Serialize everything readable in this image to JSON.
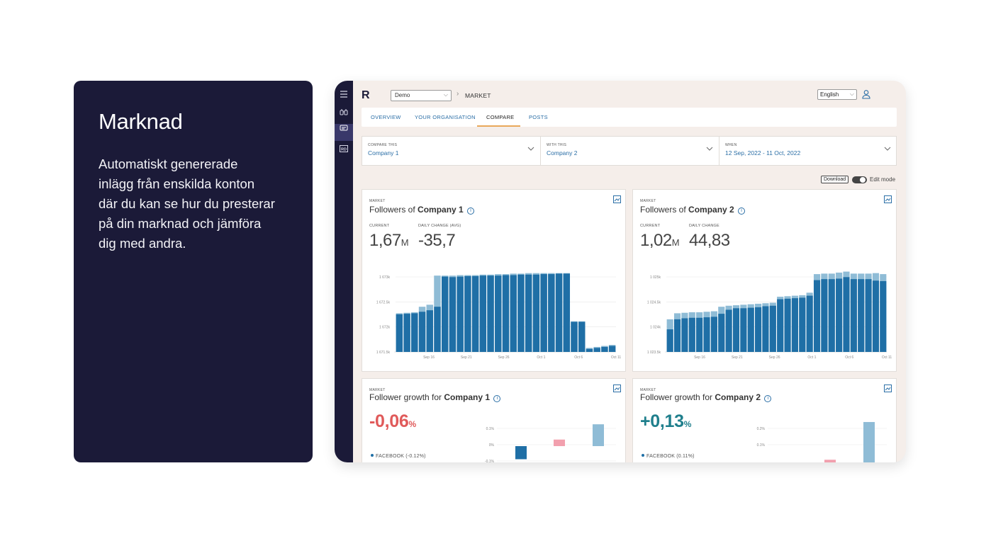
{
  "promo": {
    "title": "Marknad",
    "body": "Automatiskt genererade inlägg från enskilda konton där du kan se hur du presterar på din marknad och jämföra dig med andra."
  },
  "topbar": {
    "workspace": "Demo",
    "breadcrumb": "MARKET",
    "language": "English",
    "logo": "R"
  },
  "tabs": [
    "OVERVIEW",
    "YOUR ORGANISATION",
    "COMPARE",
    "POSTS"
  ],
  "filters": [
    {
      "label": "COMPARE THIS",
      "value": "Company 1"
    },
    {
      "label": "WITH THIS",
      "value": "Company 2"
    },
    {
      "label": "WHEN",
      "value": "12 Sep, 2022 - 11 Oct, 2022"
    }
  ],
  "toolbar": {
    "download": "Download",
    "edit_mode": "Edit mode"
  },
  "colors": {
    "bar_dark": "#1f6fa6",
    "bar_light": "#8fbcd6",
    "negative": "#e05a5a",
    "positive": "#1f7f8c",
    "pink": "#f2a0ae"
  },
  "cards": {
    "followers1": {
      "tag": "MARKET",
      "title_prefix": "Followers of",
      "company": "Company 1",
      "current_label": "CURRENT",
      "current_value": "1,67",
      "current_unit": "M",
      "change_label": "DAILY CHANGE (AVG)",
      "change_value": "-35,7"
    },
    "followers2": {
      "tag": "MARKET",
      "title_prefix": "Followers of",
      "company": "Company 2",
      "current_label": "CURRENT",
      "current_value": "1,02",
      "current_unit": "M",
      "change_label": "DAILY CHANGE",
      "change_value": "44,83"
    },
    "growth1": {
      "tag": "MARKET",
      "title_prefix": "Follower growth for",
      "company": "Company 1",
      "value": "-0,06",
      "unit": "%",
      "legend": "FACEBOOK (-0.12%)"
    },
    "growth2": {
      "tag": "MARKET",
      "title_prefix": "Follower growth for",
      "company": "Company 2",
      "value": "+0,13",
      "unit": "%",
      "legend": "FACEBOOK (0.11%)"
    }
  },
  "chart_data": [
    {
      "type": "bar",
      "title": "Followers of Company 1",
      "x_ticks": [
        "Sep 16",
        "Sep 21",
        "Sep 26",
        "Oct 1",
        "Oct 6",
        "Oct 11"
      ],
      "y_ticks": [
        "1 673k",
        "1 672.5k",
        "1 672k",
        "1 671.5k"
      ],
      "ylim": [
        1671500,
        1673150
      ],
      "series": [
        {
          "values": [
            1672250,
            1672260,
            1672270,
            1672300,
            1672330,
            1672400,
            1673000,
            1672990,
            1673000,
            1673010,
            1673010,
            1673020,
            1673020,
            1673020,
            1673030,
            1673030,
            1673040,
            1673040,
            1673040,
            1673050,
            1673050,
            1673060,
            1673060,
            1672100,
            1672100,
            1671560,
            1671580,
            1671600,
            1671620
          ]
        },
        {
          "values": [
            1672270,
            1672280,
            1672290,
            1672400,
            1672440,
            1673020,
            1673020,
            1673020,
            1673030,
            1673030,
            1673030,
            1673040,
            1673040,
            1673050,
            1673050,
            1673060,
            1673060,
            1673070,
            1673070,
            1673070,
            1673070,
            1673070,
            1673070,
            1672110,
            1672110,
            1671580,
            1671600,
            1671620,
            1671640
          ]
        }
      ]
    },
    {
      "type": "bar",
      "title": "Followers of Company 2",
      "x_ticks": [
        "Sep 16",
        "Sep 21",
        "Sep 26",
        "Oct 1",
        "Oct 6",
        "Oct 11"
      ],
      "y_ticks": [
        "1 025k",
        "1 024.5k",
        "1 024k",
        "1 023.5k"
      ],
      "ylim": [
        1023500,
        1025150
      ],
      "series": [
        {
          "values": [
            1023950,
            1024150,
            1024170,
            1024180,
            1024180,
            1024190,
            1024200,
            1024260,
            1024340,
            1024370,
            1024370,
            1024380,
            1024390,
            1024410,
            1024420,
            1024550,
            1024560,
            1024570,
            1024580,
            1024620,
            1024930,
            1024950,
            1024950,
            1024960,
            1024990,
            1024950,
            1024950,
            1024950,
            1024920,
            1024910
          ]
        },
        {
          "values": [
            1024150,
            1024270,
            1024280,
            1024290,
            1024290,
            1024300,
            1024310,
            1024400,
            1024420,
            1024430,
            1024440,
            1024450,
            1024460,
            1024470,
            1024480,
            1024600,
            1024610,
            1024620,
            1024630,
            1024680,
            1025050,
            1025060,
            1025060,
            1025080,
            1025100,
            1025060,
            1025060,
            1025060,
            1025070,
            1025050
          ]
        }
      ]
    },
    {
      "type": "bar",
      "title": "Follower growth for Company 1",
      "y_ticks": [
        "0.1%",
        "0%",
        "-0.1%"
      ],
      "ylim": [
        -0.12,
        0.12
      ],
      "values": [
        -0.06,
        0.03,
        0.1
      ]
    },
    {
      "type": "bar",
      "title": "Follower growth for Company 2",
      "y_ticks": [
        "0.2%",
        "0.1%"
      ],
      "ylim": [
        0.0,
        0.25
      ],
      "values": [
        0.04,
        0.06,
        0.24
      ]
    }
  ]
}
